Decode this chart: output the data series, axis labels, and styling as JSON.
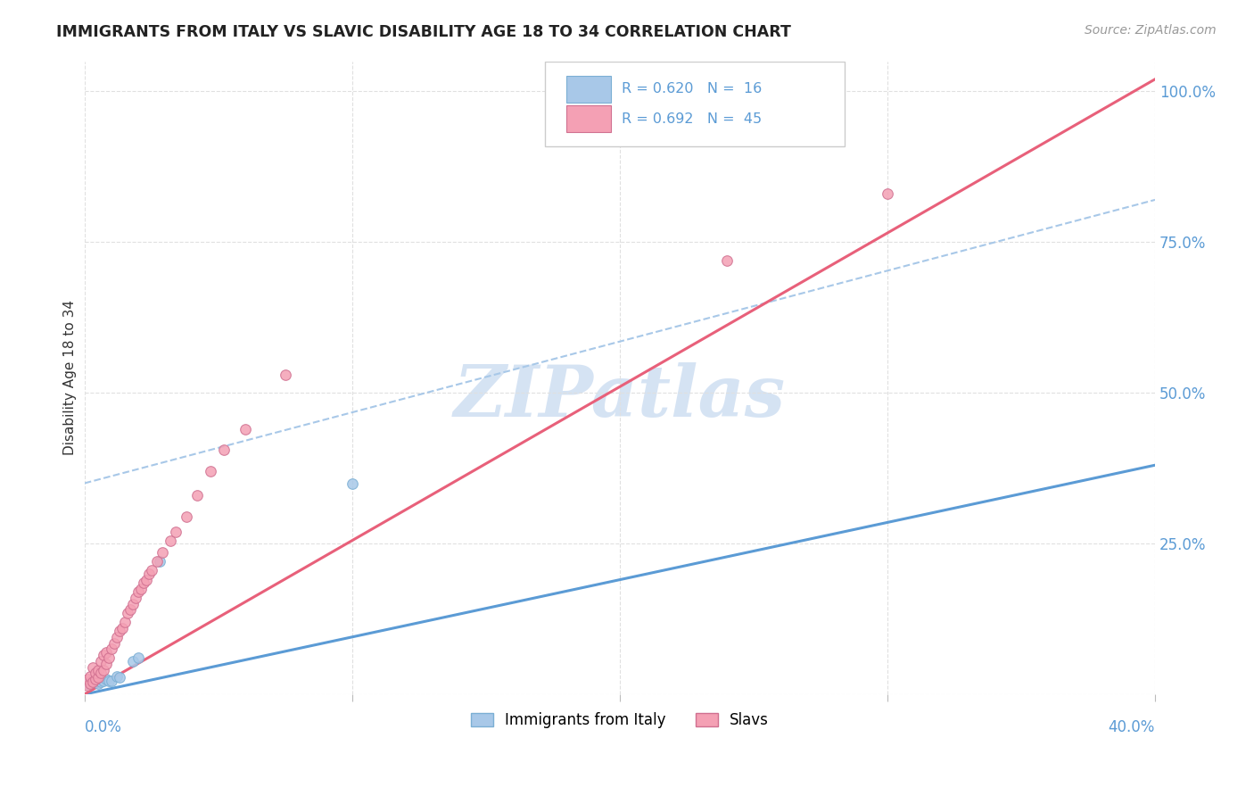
{
  "title": "IMMIGRANTS FROM ITALY VS SLAVIC DISABILITY AGE 18 TO 34 CORRELATION CHART",
  "source": "Source: ZipAtlas.com",
  "ylabel": "Disability Age 18 to 34",
  "legend_italy_label": "Immigrants from Italy",
  "legend_slavs_label": "Slavs",
  "legend_italy_r": "R = 0.620",
  "legend_italy_n": "N =  16",
  "legend_slavs_r": "R = 0.692",
  "legend_slavs_n": "N =  45",
  "italy_color": "#a8c8e8",
  "slavs_color": "#f4a0b4",
  "italy_line_color": "#5b9bd5",
  "slavs_line_color": "#e8607a",
  "dashed_line_color": "#a8c8e8",
  "watermark_color": "#c8daf0",
  "italy_x": [
    0.001,
    0.002,
    0.003,
    0.004,
    0.005,
    0.006,
    0.007,
    0.008,
    0.009,
    0.01,
    0.012,
    0.013,
    0.018,
    0.02,
    0.028,
    0.1
  ],
  "italy_y": [
    0.018,
    0.02,
    0.022,
    0.022,
    0.018,
    0.02,
    0.022,
    0.025,
    0.022,
    0.022,
    0.03,
    0.028,
    0.055,
    0.06,
    0.22,
    0.35
  ],
  "slavs_x": [
    0.001,
    0.001,
    0.002,
    0.002,
    0.003,
    0.003,
    0.004,
    0.004,
    0.005,
    0.005,
    0.006,
    0.006,
    0.007,
    0.007,
    0.008,
    0.008,
    0.009,
    0.01,
    0.011,
    0.012,
    0.013,
    0.014,
    0.015,
    0.016,
    0.017,
    0.018,
    0.019,
    0.02,
    0.021,
    0.022,
    0.023,
    0.024,
    0.025,
    0.027,
    0.029,
    0.032,
    0.034,
    0.038,
    0.042,
    0.047,
    0.052,
    0.06,
    0.075,
    0.24,
    0.3
  ],
  "slavs_y": [
    0.015,
    0.025,
    0.018,
    0.03,
    0.02,
    0.045,
    0.025,
    0.035,
    0.028,
    0.04,
    0.035,
    0.055,
    0.04,
    0.065,
    0.05,
    0.07,
    0.06,
    0.075,
    0.085,
    0.095,
    0.105,
    0.11,
    0.12,
    0.135,
    0.14,
    0.15,
    0.16,
    0.17,
    0.175,
    0.185,
    0.19,
    0.2,
    0.205,
    0.22,
    0.235,
    0.255,
    0.27,
    0.295,
    0.33,
    0.37,
    0.405,
    0.44,
    0.53,
    0.72,
    0.83
  ],
  "xmin": 0.0,
  "xmax": 0.4,
  "ymin": 0.0,
  "ymax": 1.05,
  "x_tick_positions": [
    0.0,
    0.1,
    0.2,
    0.3,
    0.4
  ],
  "y_tick_positions": [
    0.0,
    0.25,
    0.5,
    0.75,
    1.0
  ],
  "grid_color": "#e0e0e0",
  "italy_line_x0": 0.0,
  "italy_line_y0": 0.0,
  "italy_line_x1": 0.4,
  "italy_line_y1": 0.38,
  "slavs_line_x0": 0.0,
  "slavs_line_y0": 0.0,
  "slavs_line_x1": 0.4,
  "slavs_line_y1": 1.02,
  "dashed_line_x0": 0.0,
  "dashed_line_y0": 0.35,
  "dashed_line_x1": 0.4,
  "dashed_line_y1": 0.82
}
